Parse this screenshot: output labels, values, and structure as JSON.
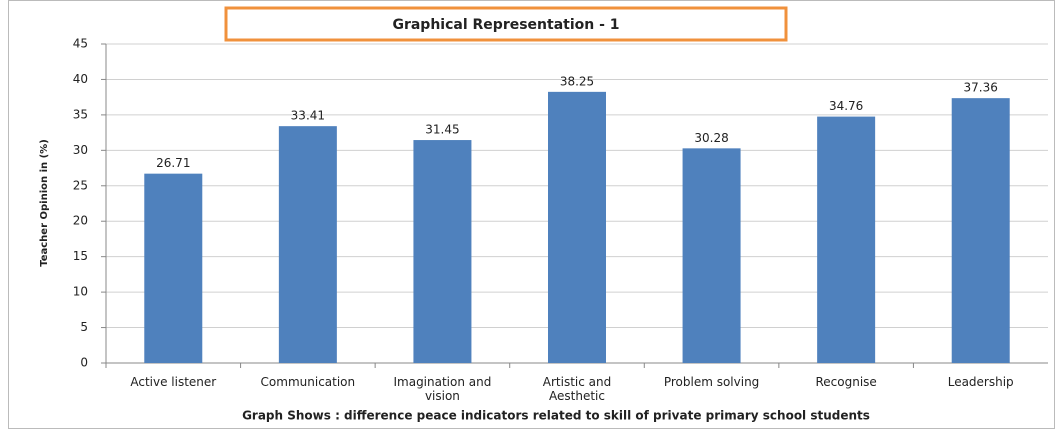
{
  "chart_data": {
    "type": "bar",
    "title": "Graphical Representation - 1",
    "ylabel": "Teacher Opinion in (%)",
    "xlabel": "Graph Shows : difference peace indicators related to skill of private primary school students",
    "categories": [
      "Active listener",
      "Communication",
      "Imagination and vision",
      "Artistic and Aesthetic",
      "Problem solving",
      "Recognise",
      "Leadership"
    ],
    "values": [
      26.71,
      33.41,
      31.45,
      38.25,
      30.28,
      34.76,
      37.36
    ],
    "color": "#4f81bd",
    "ylim": [
      0,
      45
    ],
    "yticks": [
      0,
      5,
      10,
      15,
      20,
      25,
      30,
      35,
      40,
      45
    ],
    "grid": true
  }
}
